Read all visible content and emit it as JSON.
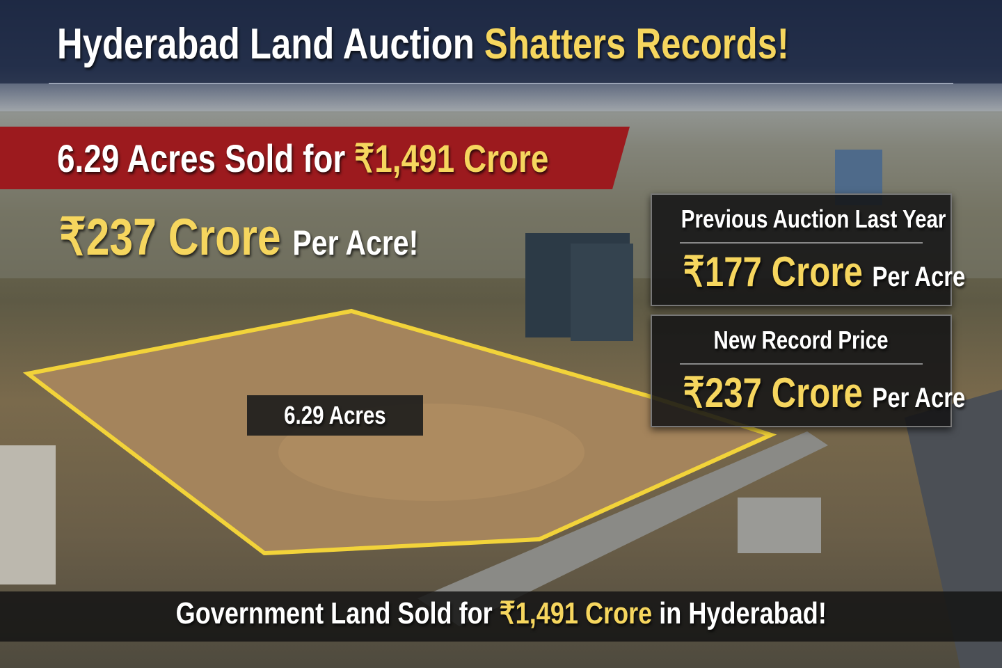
{
  "header": {
    "title": "Hyderabad Land Auction",
    "highlight": "Shatters Records!"
  },
  "banner": {
    "lead": "6.29 Acres Sold for",
    "highlight": "₹1,491 Crore"
  },
  "per_acre": {
    "highlight": "₹237 Crore",
    "suffix": "Per Acre!"
  },
  "comparison": [
    {
      "label": "Previous Auction Last Year",
      "amount": "₹177 Crore",
      "suffix": "Per Acre"
    },
    {
      "label": "New Record Price",
      "amount": "₹237 Crore",
      "suffix": "Per Acre"
    }
  ],
  "plot_label": "6.29 Acres",
  "footer": {
    "lead": "Government Land Sold for",
    "highlight": "₹1,491 Crore",
    "suffix": "in Hyderabad!"
  }
}
